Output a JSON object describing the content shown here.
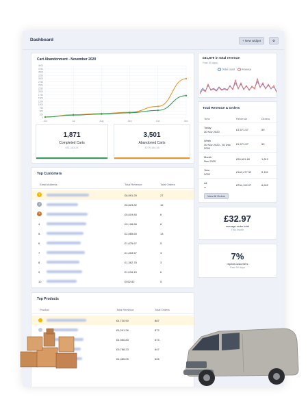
{
  "header": {
    "title": "Dashboard",
    "new_widget": "+ New widget",
    "gear_label": "⚙"
  },
  "abandon_chart": {
    "title": "Cart Abandonment - November 2020"
  },
  "chart_data": {
    "type": "line",
    "title": "Cart Abandonment - November 2020",
    "categories": [
      "Jun",
      "Jul",
      "Aug",
      "Sep",
      "Oct",
      "Nov"
    ],
    "ylim": [
      0,
      4000
    ],
    "yticks": [
      0,
      250,
      500,
      750,
      1000,
      1250,
      1500,
      1750,
      2000,
      2250,
      2500,
      2750,
      3000,
      3250,
      3500,
      3750,
      4000
    ],
    "series": [
      {
        "name": "Abandoned Carts",
        "color": "#e8962a",
        "values": [
          50,
          230,
          320,
          420,
          870,
          3000
        ]
      },
      {
        "name": "Completed Carts",
        "color": "#3a9a5a",
        "values": [
          50,
          200,
          280,
          380,
          570,
          1700
        ]
      }
    ]
  },
  "stats": [
    {
      "value": "1,871",
      "label": "Completed Carts",
      "sub": "£61,163.26",
      "color": "#3a9a5a"
    },
    {
      "value": "3,501",
      "label": "Abandoned Carts",
      "sub": "£279,164.48",
      "color": "#e8962a"
    }
  ],
  "revenue_mini": {
    "title": "£61,879 in total revenue",
    "sub": "Past 30 days",
    "legend": [
      "Order count",
      "Revenue"
    ]
  },
  "totals": {
    "title": "Total Revenue & Orders",
    "headers": [
      "Time",
      "Revenue",
      "Orders"
    ],
    "rows": [
      {
        "time": "Today",
        "date": "30 Nov 2020",
        "revenue": "£1,571.57",
        "orders": "59"
      },
      {
        "time": "Week",
        "date": "30 Nov 2020 - 30 Dec 2020",
        "revenue": "£1,571.57",
        "orders": "59"
      },
      {
        "time": "Month",
        "date": "Nov 2020",
        "revenue": "£59,691.69",
        "orders": "1,812"
      },
      {
        "time": "Year",
        "date": "2020",
        "revenue": "£160,477.32",
        "orders": "5,151"
      },
      {
        "time": "All",
        "date": "∞",
        "revenue": "£234,192.07",
        "orders": "8,602"
      }
    ],
    "button": "View All Orders"
  },
  "aov": {
    "value": "£32.97",
    "label": "average order total",
    "sub": "This month"
  },
  "repeat": {
    "value": "7%",
    "label": "repeat customers",
    "sub": "Past 90 days"
  },
  "customers": {
    "title": "Top Customers",
    "headers": [
      "Email Address",
      "Total Revenue",
      "Total Orders"
    ],
    "rows": [
      {
        "rank": "1",
        "revenue": "£6,991.25",
        "orders": "27"
      },
      {
        "rank": "2",
        "revenue": "£6,623.82",
        "orders": "16"
      },
      {
        "rank": "3",
        "revenue": "£5,619.80",
        "orders": "6"
      },
      {
        "rank": "4",
        "revenue": "£5,198.88",
        "orders": "8"
      },
      {
        "rank": "5",
        "revenue": "£2,565.60",
        "orders": "13"
      },
      {
        "rank": "6",
        "revenue": "£1,675.67",
        "orders": "5"
      },
      {
        "rank": "7",
        "revenue": "£1,403.57",
        "orders": "3"
      },
      {
        "rank": "8",
        "revenue": "£1,362.78",
        "orders": "3"
      },
      {
        "rank": "9",
        "revenue": "£1,034.15",
        "orders": "6"
      },
      {
        "rank": "10",
        "revenue": "£932.82",
        "orders": "5"
      }
    ]
  },
  "products": {
    "title": "Top Products",
    "headers": [
      "Product",
      "Total Revenue",
      "Total Orders"
    ],
    "rows": [
      {
        "revenue": "£4,720.90",
        "orders": "887"
      },
      {
        "revenue": "£6,291.26",
        "orders": "872"
      },
      {
        "revenue": "£4,960.83",
        "orders": "674"
      },
      {
        "revenue": "£5,788.23",
        "orders": "647"
      },
      {
        "revenue": "£4,485.05",
        "orders": "626"
      }
    ]
  },
  "colors": {
    "gold": "#f2b705",
    "silver": "#9aa7b8",
    "bronze": "#c9762d"
  }
}
